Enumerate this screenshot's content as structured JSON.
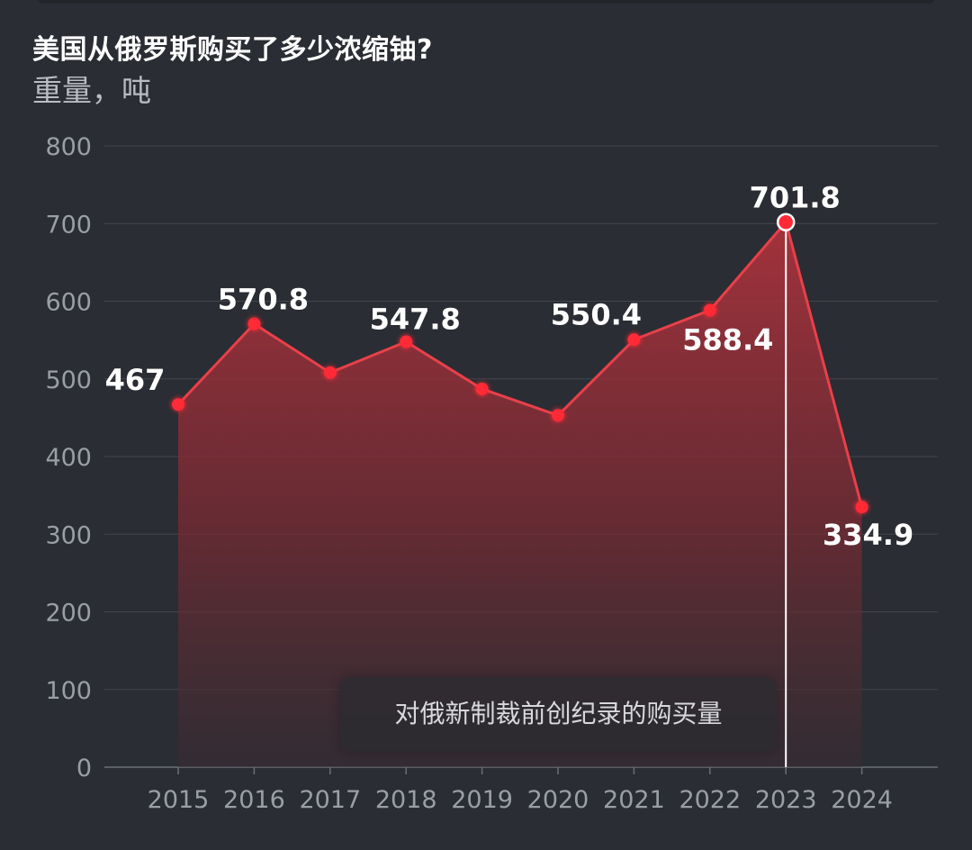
{
  "colors": {
    "background": "#2a2d33",
    "line": "#e8404a",
    "marker": "#ff2a36",
    "grid": "#42464d",
    "highlight_line": "#ffffff"
  },
  "chart_data": {
    "type": "area",
    "title": "美国从俄罗斯购买了多少浓缩铀?",
    "subtitle": "重量，吨",
    "categories": [
      "2015",
      "2016",
      "2017",
      "2018",
      "2019",
      "2020",
      "2021",
      "2022",
      "2023",
      "2024"
    ],
    "series": [
      {
        "values": [
          467,
          570.8,
          508,
          547.8,
          487,
          453,
          550.4,
          588.4,
          701.8,
          334.9
        ]
      }
    ],
    "data_labels": [
      {
        "index": 0,
        "text": "467"
      },
      {
        "index": 1,
        "text": "570.8"
      },
      {
        "index": 3,
        "text": "547.8"
      },
      {
        "index": 6,
        "text": "550.4"
      },
      {
        "index": 7,
        "text": "588.4"
      },
      {
        "index": 8,
        "text": "701.8"
      },
      {
        "index": 9,
        "text": "334.9"
      }
    ],
    "y_ticks": [
      0,
      100,
      200,
      300,
      400,
      500,
      600,
      700,
      800
    ],
    "ylim": [
      0,
      800
    ],
    "grid": true,
    "highlight_index": 8,
    "annotation": "对俄新制裁前创纪录的购买量"
  }
}
